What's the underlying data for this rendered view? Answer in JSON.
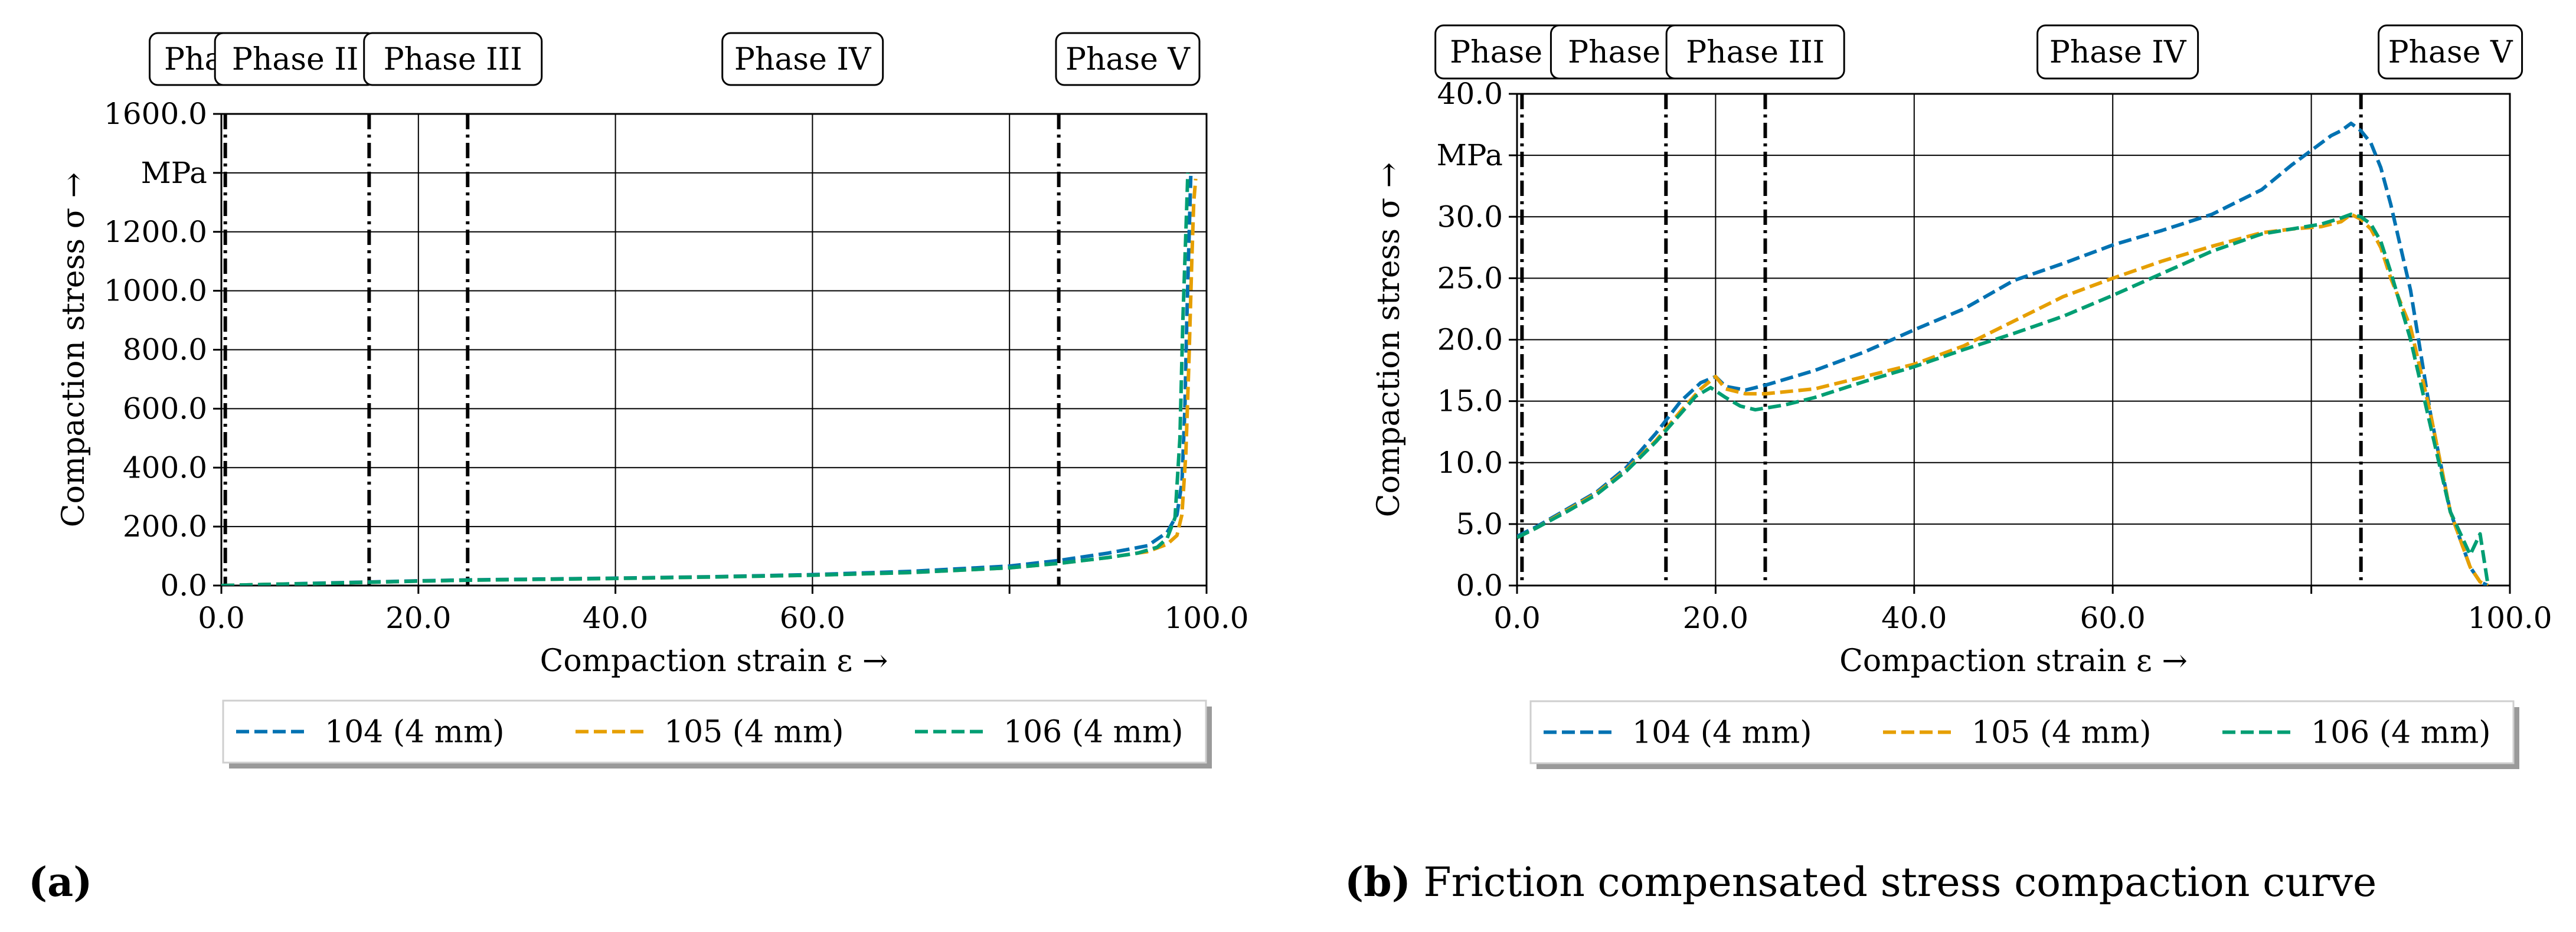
{
  "colors": {
    "s104": "#0072B2",
    "s105": "#E69F00",
    "s106": "#009E73"
  },
  "figure_a": {
    "caption_label": "(a)",
    "caption_text": ""
  },
  "figure_b": {
    "caption_label": "(b)",
    "caption_text": "Friction compensated stress compaction curve"
  },
  "chart_data": [
    {
      "type": "line",
      "panel": "a",
      "title": "",
      "xlabel": "Compaction strain ε →",
      "ylabel": "Compaction stress σ →",
      "xlim": [
        0,
        100
      ],
      "ylim": [
        0,
        1600
      ],
      "grid": true,
      "xticks": [
        0,
        20,
        40,
        60,
        80,
        100
      ],
      "xtick_labels": [
        "0.0",
        "20.0",
        "40.0",
        "60.0",
        "",
        "100.0"
      ],
      "yticks": [
        0,
        200,
        400,
        600,
        800,
        1000,
        1200,
        1400,
        1600
      ],
      "ytick_labels": [
        "0.0",
        "200.0",
        "400.0",
        "600.0",
        "800.0",
        "1000.0",
        "1200.0",
        "MPa",
        "1600.0"
      ],
      "phase_lines": [
        0.4,
        15,
        25,
        85
      ],
      "phases": [
        {
          "label": "Phase I",
          "x": 0
        },
        {
          "label": "Phase II",
          "x": 7.5
        },
        {
          "label": "Phase III",
          "x": 23.5
        },
        {
          "label": "Phase IV",
          "x": 59
        },
        {
          "label": "Phase V",
          "x": 92
        }
      ],
      "legend": [
        "104 (4 mm)",
        "105 (4 mm)",
        "106 (4 mm)"
      ],
      "series": [
        {
          "name": "104 (4 mm)",
          "x": [
            0,
            5,
            10,
            15,
            20,
            25,
            30,
            40,
            50,
            60,
            70,
            80,
            85,
            90,
            94,
            96,
            97,
            97.5,
            97.8,
            98.0,
            98.2,
            98.4
          ],
          "y": [
            0,
            4,
            8,
            12,
            16,
            19,
            21,
            25,
            30,
            37,
            48,
            66,
            85,
            110,
            135,
            180,
            240,
            350,
            600,
            900,
            1150,
            1390
          ]
        },
        {
          "name": "105 (4 mm)",
          "x": [
            0,
            5,
            10,
            15,
            20,
            25,
            30,
            40,
            50,
            60,
            70,
            80,
            85,
            90,
            94,
            96,
            97,
            97.5,
            97.9,
            98.2,
            98.5,
            98.7,
            98.9
          ],
          "y": [
            0,
            4,
            7,
            11,
            15,
            18,
            20,
            24,
            29,
            35,
            44,
            60,
            75,
            95,
            115,
            140,
            170,
            240,
            450,
            750,
            1100,
            1300,
            1380
          ]
        },
        {
          "name": "106 (4 mm)",
          "x": [
            0,
            5,
            10,
            15,
            20,
            25,
            30,
            40,
            50,
            60,
            70,
            80,
            85,
            90,
            93,
            95,
            96,
            96.8,
            97.3,
            97.6,
            97.9,
            98.1
          ],
          "y": [
            0,
            4,
            7,
            11,
            15,
            18,
            20,
            24,
            29,
            35,
            44,
            60,
            75,
            95,
            110,
            130,
            160,
            230,
            500,
            900,
            1200,
            1400
          ]
        }
      ]
    },
    {
      "type": "line",
      "panel": "b",
      "title": "",
      "xlabel": "Compaction strain ε →",
      "ylabel": "Compaction stress σ →",
      "xlim": [
        0,
        100
      ],
      "ylim": [
        0,
        40
      ],
      "grid": true,
      "xticks": [
        0,
        20,
        40,
        60,
        80,
        100
      ],
      "xtick_labels": [
        "0.0",
        "20.0",
        "40.0",
        "60.0",
        "",
        "100.0"
      ],
      "yticks": [
        0,
        5,
        10,
        15,
        20,
        25,
        30,
        35,
        40
      ],
      "ytick_labels": [
        "0.0",
        "5.0",
        "10.0",
        "15.0",
        "20.0",
        "25.0",
        "30.0",
        "MPa",
        "40.0"
      ],
      "phase_lines": [
        0.5,
        15,
        25,
        85
      ],
      "phases": [
        {
          "label": "Phase I",
          "x": -1
        },
        {
          "label": "Phase II",
          "x": 11.5
        },
        {
          "label": "Phase III",
          "x": 24
        },
        {
          "label": "Phase IV",
          "x": 60.5
        },
        {
          "label": "Phase V",
          "x": 94
        }
      ],
      "legend": [
        "104 (4 mm)",
        "105 (4 mm)",
        "106 (4 mm)"
      ],
      "series": [
        {
          "name": "104 (4 mm)",
          "x": [
            0,
            2,
            5,
            8,
            11,
            14,
            16.5,
            18.5,
            20,
            21,
            23,
            25,
            30,
            35,
            40,
            45,
            50,
            55,
            60,
            65,
            70,
            75,
            78,
            81,
            82,
            83,
            84,
            85,
            86,
            87,
            88,
            90,
            92,
            94,
            96,
            97,
            97.8
          ],
          "y": [
            4.0,
            4.8,
            6.2,
            7.6,
            9.6,
            12.4,
            15.0,
            16.5,
            17.0,
            16.2,
            15.9,
            16.3,
            17.5,
            19.0,
            20.8,
            22.5,
            24.8,
            26.2,
            27.7,
            28.9,
            30.2,
            32.2,
            34.2,
            36.0,
            36.6,
            37.0,
            37.6,
            37.0,
            36.0,
            34.0,
            31.0,
            24.0,
            14.0,
            6.0,
            1.5,
            0.3,
            0.0
          ]
        },
        {
          "name": "105 (4 mm)",
          "x": [
            0,
            2,
            5,
            8,
            11,
            14,
            16.5,
            18.5,
            20,
            21,
            23,
            25,
            30,
            35,
            40,
            45,
            50,
            55,
            60,
            65,
            70,
            75,
            78,
            81,
            83,
            84,
            85,
            86,
            87,
            88,
            90,
            92,
            94,
            96,
            97,
            97.8
          ],
          "y": [
            3.9,
            4.7,
            6.1,
            7.5,
            9.4,
            11.8,
            14.2,
            16.0,
            17.0,
            16.0,
            15.6,
            15.6,
            16.0,
            17.0,
            18.0,
            19.5,
            21.5,
            23.5,
            25.0,
            26.4,
            27.6,
            28.7,
            29.0,
            29.2,
            29.6,
            30.2,
            29.8,
            29.0,
            27.5,
            25.0,
            21.0,
            14.0,
            6.0,
            1.5,
            0.3,
            0.0
          ]
        },
        {
          "name": "106 (4 mm)",
          "x": [
            0,
            2,
            5,
            8,
            11,
            14,
            16.5,
            18,
            19.5,
            21,
            22.5,
            24,
            27,
            30,
            35,
            40,
            45,
            50,
            55,
            60,
            65,
            70,
            75,
            78,
            81,
            83,
            84,
            85,
            86,
            87,
            88,
            90,
            92,
            94,
            96,
            97,
            97.8
          ],
          "y": [
            3.9,
            4.7,
            6.0,
            7.4,
            9.3,
            11.7,
            14.0,
            15.4,
            16.1,
            15.3,
            14.6,
            14.3,
            14.7,
            15.3,
            16.6,
            17.8,
            19.2,
            20.5,
            21.9,
            23.6,
            25.4,
            27.2,
            28.6,
            29.0,
            29.4,
            29.9,
            30.2,
            30.0,
            29.4,
            28.0,
            25.5,
            20.0,
            13.0,
            6.0,
            2.5,
            4.2,
            0.0
          ]
        }
      ]
    }
  ]
}
